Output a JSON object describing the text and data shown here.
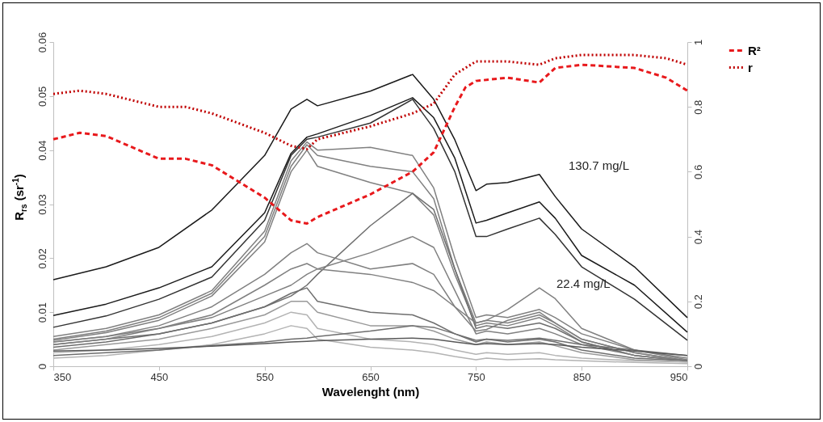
{
  "chart_data": {
    "type": "line",
    "xlabel": "Wavelenght (nm)",
    "ylabel": "R$_{rs}$ (sr$^{-1}$)",
    "x": [
      350,
      400,
      450,
      500,
      550,
      575,
      590,
      600,
      650,
      690,
      710,
      730,
      750,
      760,
      780,
      810,
      825,
      850,
      900,
      950
    ],
    "xlim": [
      350,
      950
    ],
    "xticks": [
      350,
      450,
      550,
      650,
      750,
      850,
      950
    ],
    "ylim": [
      0,
      0.06
    ],
    "yticks": [
      {
        "value": 0,
        "label": "0"
      },
      0.01,
      0.02,
      0.03,
      0.04,
      0.05,
      0.06
    ],
    "y2lim": [
      0,
      1
    ],
    "y2ticks": [
      {
        "value": 0,
        "label": "0"
      },
      0.2,
      0.4,
      0.6,
      0.8,
      {
        "value": 1,
        "label": "1"
      }
    ],
    "legend": "right",
    "series": [
      {
        "color": "#1a1a1a",
        "values": [
          0.016,
          0.0184,
          0.022,
          0.0289,
          0.039,
          0.0476,
          0.0494,
          0.0482,
          0.0509,
          0.054,
          0.0494,
          0.0419,
          0.0325,
          0.0337,
          0.034,
          0.0355,
          0.0314,
          0.0254,
          0.0184,
          0.009
        ]
      },
      {
        "color": "#1a1a1a",
        "values": [
          0.0094,
          0.0115,
          0.0145,
          0.0184,
          0.0284,
          0.0394,
          0.0424,
          0.043,
          0.0464,
          0.0497,
          0.046,
          0.0385,
          0.0265,
          0.027,
          0.0284,
          0.0304,
          0.0274,
          0.0205,
          0.015,
          0.0063
        ]
      },
      {
        "color": "#333333",
        "values": [
          0.0072,
          0.0093,
          0.0124,
          0.0165,
          0.027,
          0.039,
          0.042,
          0.0424,
          0.045,
          0.0494,
          0.044,
          0.036,
          0.024,
          0.024,
          0.0254,
          0.0274,
          0.0244,
          0.0184,
          0.0124,
          0.0048
        ]
      },
      {
        "color": "#808080",
        "values": [
          0.0055,
          0.007,
          0.0095,
          0.014,
          0.025,
          0.038,
          0.0415,
          0.04,
          0.0405,
          0.039,
          0.033,
          0.02,
          0.009,
          0.0095,
          0.009,
          0.0105,
          0.009,
          0.006,
          0.003,
          0.0015
        ]
      },
      {
        "color": "#808080",
        "values": [
          0.005,
          0.0065,
          0.009,
          0.0135,
          0.024,
          0.037,
          0.041,
          0.039,
          0.037,
          0.036,
          0.031,
          0.018,
          0.008,
          0.0085,
          0.008,
          0.0095,
          0.008,
          0.005,
          0.0025,
          0.001
        ]
      },
      {
        "color": "#808080",
        "values": [
          0.0048,
          0.0062,
          0.0085,
          0.013,
          0.023,
          0.036,
          0.04,
          0.037,
          0.034,
          0.032,
          0.028,
          0.017,
          0.0075,
          0.008,
          0.0075,
          0.009,
          0.0075,
          0.0045,
          0.002,
          0.001
        ]
      },
      {
        "color": "#6e6e6e",
        "values": [
          0.004,
          0.005,
          0.006,
          0.008,
          0.011,
          0.013,
          0.015,
          0.017,
          0.026,
          0.032,
          0.029,
          0.018,
          0.007,
          0.0075,
          0.007,
          0.008,
          0.007,
          0.0045,
          0.002,
          0.001
        ]
      },
      {
        "color": "#808080",
        "values": [
          0.0045,
          0.0055,
          0.007,
          0.009,
          0.013,
          0.015,
          0.017,
          0.018,
          0.021,
          0.024,
          0.022,
          0.014,
          0.006,
          0.0065,
          0.006,
          0.007,
          0.006,
          0.004,
          0.002,
          0.001
        ]
      },
      {
        "color": "#808080",
        "values": [
          0.0045,
          0.0055,
          0.0075,
          0.011,
          0.017,
          0.021,
          0.0227,
          0.021,
          0.018,
          0.019,
          0.017,
          0.011,
          0.0065,
          0.0068,
          0.0085,
          0.01,
          0.008,
          0.005,
          0.0025,
          0.001
        ]
      },
      {
        "color": "#808080",
        "values": [
          0.004,
          0.005,
          0.007,
          0.0095,
          0.015,
          0.018,
          0.019,
          0.018,
          0.017,
          0.0155,
          0.014,
          0.011,
          0.008,
          0.0085,
          0.0105,
          0.0145,
          0.0125,
          0.007,
          0.003,
          0.0012
        ]
      },
      {
        "color": "#6e6e6e",
        "values": [
          0.0035,
          0.0045,
          0.006,
          0.008,
          0.011,
          0.0135,
          0.0145,
          0.012,
          0.01,
          0.0095,
          0.008,
          0.006,
          0.0045,
          0.005,
          0.0045,
          0.005,
          0.0045,
          0.003,
          0.0015,
          0.001
        ]
      },
      {
        "color": "#999999",
        "values": [
          0.003,
          0.004,
          0.005,
          0.007,
          0.0095,
          0.012,
          0.012,
          0.01,
          0.0075,
          0.0075,
          0.0065,
          0.005,
          0.004,
          0.0045,
          0.004,
          0.0045,
          0.0038,
          0.0025,
          0.0012,
          0.0008
        ]
      },
      {
        "color": "#b3b3b3",
        "values": [
          0.0025,
          0.003,
          0.004,
          0.0055,
          0.008,
          0.01,
          0.0095,
          0.007,
          0.005,
          0.0045,
          0.004,
          0.003,
          0.0022,
          0.0025,
          0.0022,
          0.0025,
          0.002,
          0.0015,
          0.001,
          0.0008
        ]
      },
      {
        "color": "#b3b3b3",
        "values": [
          0.0015,
          0.002,
          0.003,
          0.004,
          0.006,
          0.0075,
          0.007,
          0.005,
          0.0035,
          0.003,
          0.0025,
          0.0018,
          0.0012,
          0.0015,
          0.0012,
          0.0014,
          0.0012,
          0.001,
          0.0007,
          0.0005
        ]
      },
      {
        "color": "#6e6e6e",
        "values": [
          0.002,
          0.0025,
          0.003,
          0.0038,
          0.0045,
          0.005,
          0.0052,
          0.0055,
          0.0065,
          0.0075,
          0.0072,
          0.006,
          0.0048,
          0.005,
          0.0048,
          0.0052,
          0.0048,
          0.004,
          0.003,
          0.002
        ]
      },
      {
        "color": "#595959",
        "values": [
          0.0028,
          0.003,
          0.0033,
          0.0037,
          0.0042,
          0.0045,
          0.0046,
          0.0047,
          0.005,
          0.0052,
          0.005,
          0.0045,
          0.004,
          0.0042,
          0.004,
          0.0042,
          0.004,
          0.0035,
          0.0028,
          0.002
        ]
      },
      {
        "name": "R²",
        "color": "#e8191c",
        "line_style": "dashed",
        "axis": "y2",
        "x": [
          350,
          375,
          400,
          450,
          475,
          500,
          550,
          575,
          590,
          600,
          650,
          690,
          710,
          730,
          740,
          750,
          780,
          810,
          825,
          850,
          900,
          930,
          950
        ],
        "values": [
          0.7,
          0.72,
          0.71,
          0.64,
          0.64,
          0.62,
          0.52,
          0.45,
          0.44,
          0.46,
          0.53,
          0.6,
          0.66,
          0.8,
          0.86,
          0.88,
          0.89,
          0.875,
          0.92,
          0.93,
          0.92,
          0.89,
          0.85
        ]
      },
      {
        "name": "r",
        "color": "#c00000",
        "line_style": "dotted",
        "axis": "y2",
        "x": [
          350,
          375,
          400,
          450,
          475,
          500,
          550,
          575,
          590,
          600,
          650,
          690,
          710,
          730,
          750,
          780,
          810,
          825,
          850,
          900,
          930,
          950
        ],
        "values": [
          0.84,
          0.85,
          0.84,
          0.8,
          0.8,
          0.78,
          0.72,
          0.68,
          0.67,
          0.7,
          0.74,
          0.78,
          0.81,
          0.9,
          0.94,
          0.94,
          0.93,
          0.95,
          0.96,
          0.96,
          0.95,
          0.93
        ]
      }
    ],
    "annotations": [
      "130.7 mg/L",
      "22.4 mg/L"
    ]
  }
}
